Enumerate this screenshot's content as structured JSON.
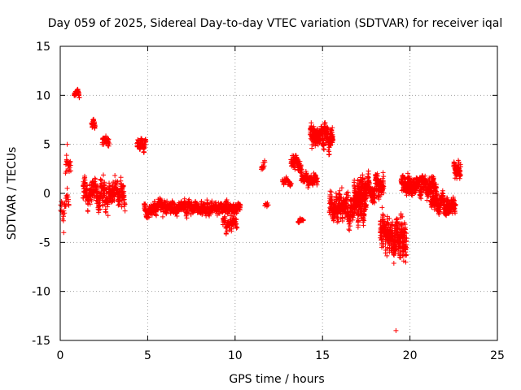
{
  "chart_data": {
    "type": "scatter",
    "title": "Day 059 of 2025, Sidereal Day-to-day VTEC variation (SDTVAR) for receiver iqal",
    "xlabel": "GPS time / hours",
    "ylabel": "SDTVAR / TECUs",
    "xlim": [
      0,
      25
    ],
    "ylim": [
      -15,
      15
    ],
    "xticks": [
      0,
      5,
      10,
      15,
      20,
      25
    ],
    "yticks": [
      -15,
      -10,
      -5,
      0,
      5,
      10,
      15
    ],
    "grid": true,
    "marker": "+",
    "color": "#ff0000",
    "segments": [
      {
        "x0": 0.0,
        "x1": 0.5,
        "center": -1.5,
        "spread": 3.0,
        "n": 30
      },
      {
        "x0": 0.3,
        "x1": 0.6,
        "center": 2.0,
        "spread": 2.5,
        "n": 25
      },
      {
        "x0": 0.8,
        "x1": 1.1,
        "center": 10.0,
        "spread": 0.9,
        "n": 40
      },
      {
        "x0": 1.3,
        "x1": 3.7,
        "center": 0.0,
        "spread": 3.2,
        "n": 380
      },
      {
        "x0": 1.8,
        "x1": 2.0,
        "center": 7.0,
        "spread": 1.2,
        "n": 25
      },
      {
        "x0": 2.4,
        "x1": 2.8,
        "center": 5.0,
        "spread": 1.2,
        "n": 40
      },
      {
        "x0": 4.4,
        "x1": 4.9,
        "center": 5.0,
        "spread": 1.2,
        "n": 60
      },
      {
        "x0": 4.8,
        "x1": 10.3,
        "center": -1.5,
        "spread": 1.4,
        "n": 900
      },
      {
        "x0": 9.3,
        "x1": 10.1,
        "center": -3.0,
        "spread": 1.6,
        "n": 80
      },
      {
        "x0": 11.5,
        "x1": 11.7,
        "center": 2.5,
        "spread": 1.3,
        "n": 12
      },
      {
        "x0": 11.7,
        "x1": 11.9,
        "center": -1.2,
        "spread": 0.8,
        "n": 10
      },
      {
        "x0": 12.7,
        "x1": 13.2,
        "center": 1.2,
        "spread": 0.8,
        "n": 40
      },
      {
        "x0": 13.2,
        "x1": 13.8,
        "center": 3.0,
        "spread": 1.8,
        "n": 90
      },
      {
        "x0": 13.6,
        "x1": 13.9,
        "center": -2.8,
        "spread": 0.4,
        "n": 25
      },
      {
        "x0": 13.8,
        "x1": 14.7,
        "center": 1.5,
        "spread": 1.5,
        "n": 130
      },
      {
        "x0": 14.3,
        "x1": 15.6,
        "center": 6.0,
        "spread": 2.5,
        "n": 280
      },
      {
        "x0": 15.4,
        "x1": 17.5,
        "center": -1.5,
        "spread": 3.3,
        "n": 420
      },
      {
        "x0": 16.8,
        "x1": 18.5,
        "center": 0.5,
        "spread": 2.8,
        "n": 350
      },
      {
        "x0": 18.3,
        "x1": 19.8,
        "center": -4.5,
        "spread": 4.0,
        "n": 380
      },
      {
        "x0": 19.5,
        "x1": 21.5,
        "center": 1.0,
        "spread": 2.2,
        "n": 400
      },
      {
        "x0": 21.2,
        "x1": 22.6,
        "center": -1.0,
        "spread": 2.0,
        "n": 280
      },
      {
        "x0": 22.5,
        "x1": 22.9,
        "center": 2.5,
        "spread": 2.0,
        "n": 60
      }
    ],
    "extra_points": [
      {
        "x": 19.2,
        "y": -14.0
      },
      {
        "x": 0.2,
        "y": -4.0
      },
      {
        "x": 0.4,
        "y": 5.0
      }
    ]
  }
}
